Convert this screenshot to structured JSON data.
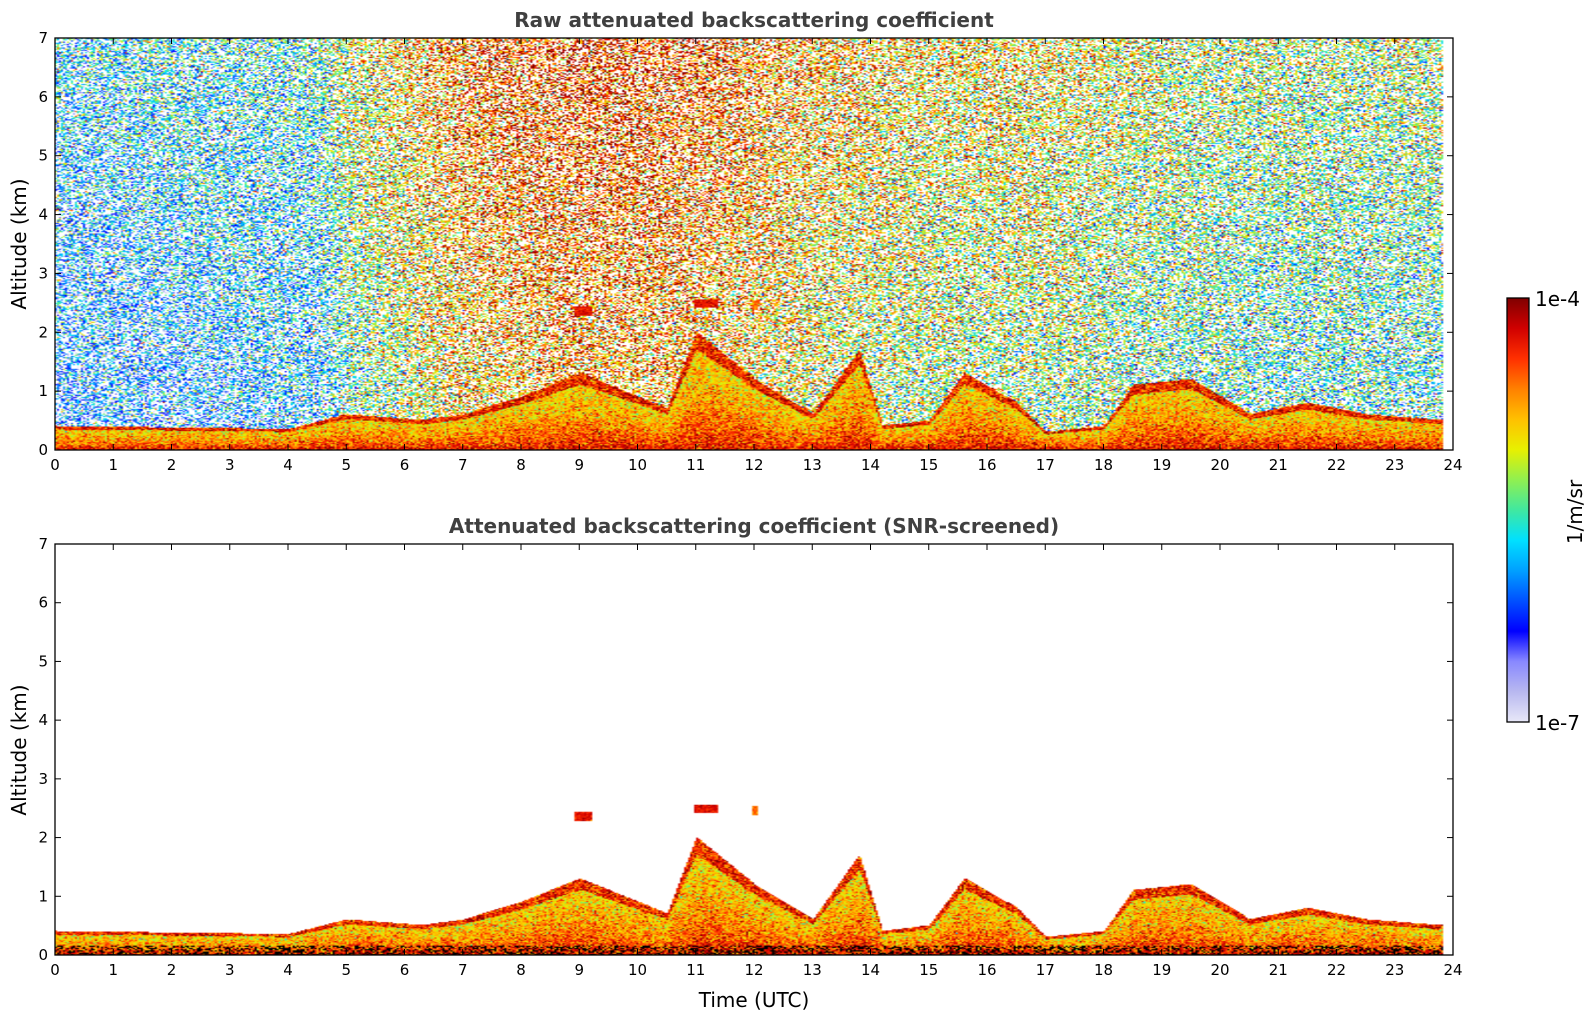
{
  "colors": {
    "colormap": [
      "#e8e8f8",
      "#b8b8f0",
      "#8888ff",
      "#0000ff",
      "#0050ff",
      "#00a0ff",
      "#00e0ff",
      "#40e8a0",
      "#90f050",
      "#e8f000",
      "#ffc000",
      "#ff8000",
      "#ff3000",
      "#d00000",
      "#800000"
    ],
    "below_threshold": "#000000"
  },
  "colorbar": {
    "label": "1/m/sr",
    "max_label": "1e-4",
    "min_label": "1e-7",
    "range_log10": [
      -7,
      -4
    ]
  },
  "chart_data": [
    {
      "type": "heatmap",
      "title": "Raw attenuated backscattering coefficient",
      "xlabel": "",
      "ylabel": "Altitude (km)",
      "xlim": [
        0,
        24
      ],
      "ylim": [
        0,
        7
      ],
      "xticks": [
        "0",
        "1",
        "2",
        "3",
        "4",
        "5",
        "6",
        "7",
        "8",
        "9",
        "10",
        "11",
        "12",
        "13",
        "14",
        "15",
        "16",
        "17",
        "18",
        "19",
        "20",
        "21",
        "22",
        "23",
        "24"
      ],
      "yticks": [
        "0",
        "1",
        "2",
        "3",
        "4",
        "5",
        "6",
        "7"
      ],
      "z_scale": "log10",
      "noise_level_log10_by_hour": [
        [
          0,
          -6.2
        ],
        [
          4.5,
          -6.0
        ],
        [
          5,
          -5.6
        ],
        [
          7,
          -5.0
        ],
        [
          9,
          -4.8
        ],
        [
          11,
          -4.9
        ],
        [
          13,
          -5.2
        ],
        [
          15,
          -5.4
        ],
        [
          17,
          -5.4
        ],
        [
          19,
          -5.6
        ],
        [
          21,
          -5.7
        ],
        [
          23.8,
          -5.7
        ]
      ],
      "boundary_layer_top_km": [
        [
          0,
          0.4
        ],
        [
          4,
          0.35
        ],
        [
          5,
          0.6
        ],
        [
          6.3,
          0.5
        ],
        [
          7,
          0.6
        ],
        [
          8,
          0.9
        ],
        [
          9,
          1.3
        ],
        [
          10.5,
          0.7
        ],
        [
          11,
          2.0
        ],
        [
          12,
          1.2
        ],
        [
          13,
          0.6
        ],
        [
          13.8,
          1.7
        ],
        [
          14.2,
          0.4
        ],
        [
          15,
          0.5
        ],
        [
          15.6,
          1.3
        ],
        [
          16.5,
          0.8
        ],
        [
          17,
          0.3
        ],
        [
          18,
          0.4
        ],
        [
          18.5,
          1.1
        ],
        [
          19.5,
          1.2
        ],
        [
          20.5,
          0.6
        ],
        [
          21.5,
          0.8
        ],
        [
          22.5,
          0.6
        ],
        [
          23.8,
          0.5
        ]
      ],
      "layer_features": [
        {
          "t_start": 8.9,
          "t_end": 9.2,
          "alt_km": 2.35,
          "log10_beta": -4.3
        },
        {
          "t_start": 10.95,
          "t_end": 11.35,
          "alt_km": 2.48,
          "log10_beta": -4.3
        },
        {
          "t_start": 11.95,
          "t_end": 12.05,
          "alt_km": 2.45,
          "log10_beta": -4.6
        }
      ]
    },
    {
      "type": "heatmap",
      "title": "Attenuated backscattering coefficient (SNR-screened)",
      "xlabel": "Time (UTC)",
      "ylabel": "Altitude (km)",
      "xlim": [
        0,
        24
      ],
      "ylim": [
        0,
        7
      ],
      "xticks": [
        "0",
        "1",
        "2",
        "3",
        "4",
        "5",
        "6",
        "7",
        "8",
        "9",
        "10",
        "11",
        "12",
        "13",
        "14",
        "15",
        "16",
        "17",
        "18",
        "19",
        "20",
        "21",
        "22",
        "23",
        "24"
      ],
      "yticks": [
        "0",
        "1",
        "2",
        "3",
        "4",
        "5",
        "6",
        "7"
      ],
      "z_scale": "log10",
      "screening": "values with low SNR removed (white)"
    }
  ]
}
